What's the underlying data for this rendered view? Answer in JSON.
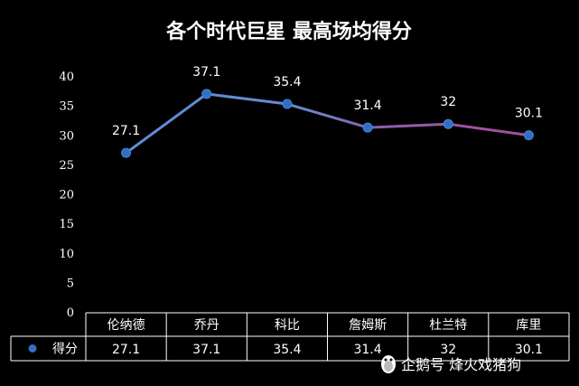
{
  "chart_data": {
    "type": "line",
    "title": "各个时代巨星 最高场均得分",
    "categories": [
      "伦纳德",
      "乔丹",
      "科比",
      "詹姆斯",
      "杜兰特",
      "库里"
    ],
    "series": [
      {
        "name": "得分",
        "values": [
          27.1,
          37.1,
          35.4,
          31.4,
          32,
          30.1
        ],
        "value_labels": [
          "27.1",
          "37.1",
          "35.4",
          "31.4",
          "32",
          "30.1"
        ]
      }
    ],
    "y_ticks": [
      "0",
      "5",
      "10",
      "15",
      "20",
      "25",
      "30",
      "35",
      "40"
    ],
    "ylim": [
      0,
      40
    ],
    "grid": false,
    "legend": "data-table",
    "colors": {
      "background": "#000000",
      "line_start": "#5b8fd6",
      "line_end": "#a34e98",
      "marker": "#2f6fc7",
      "text": "#ffffff"
    }
  },
  "watermark": {
    "text": "企鹅号 烽火戏猪狗"
  }
}
